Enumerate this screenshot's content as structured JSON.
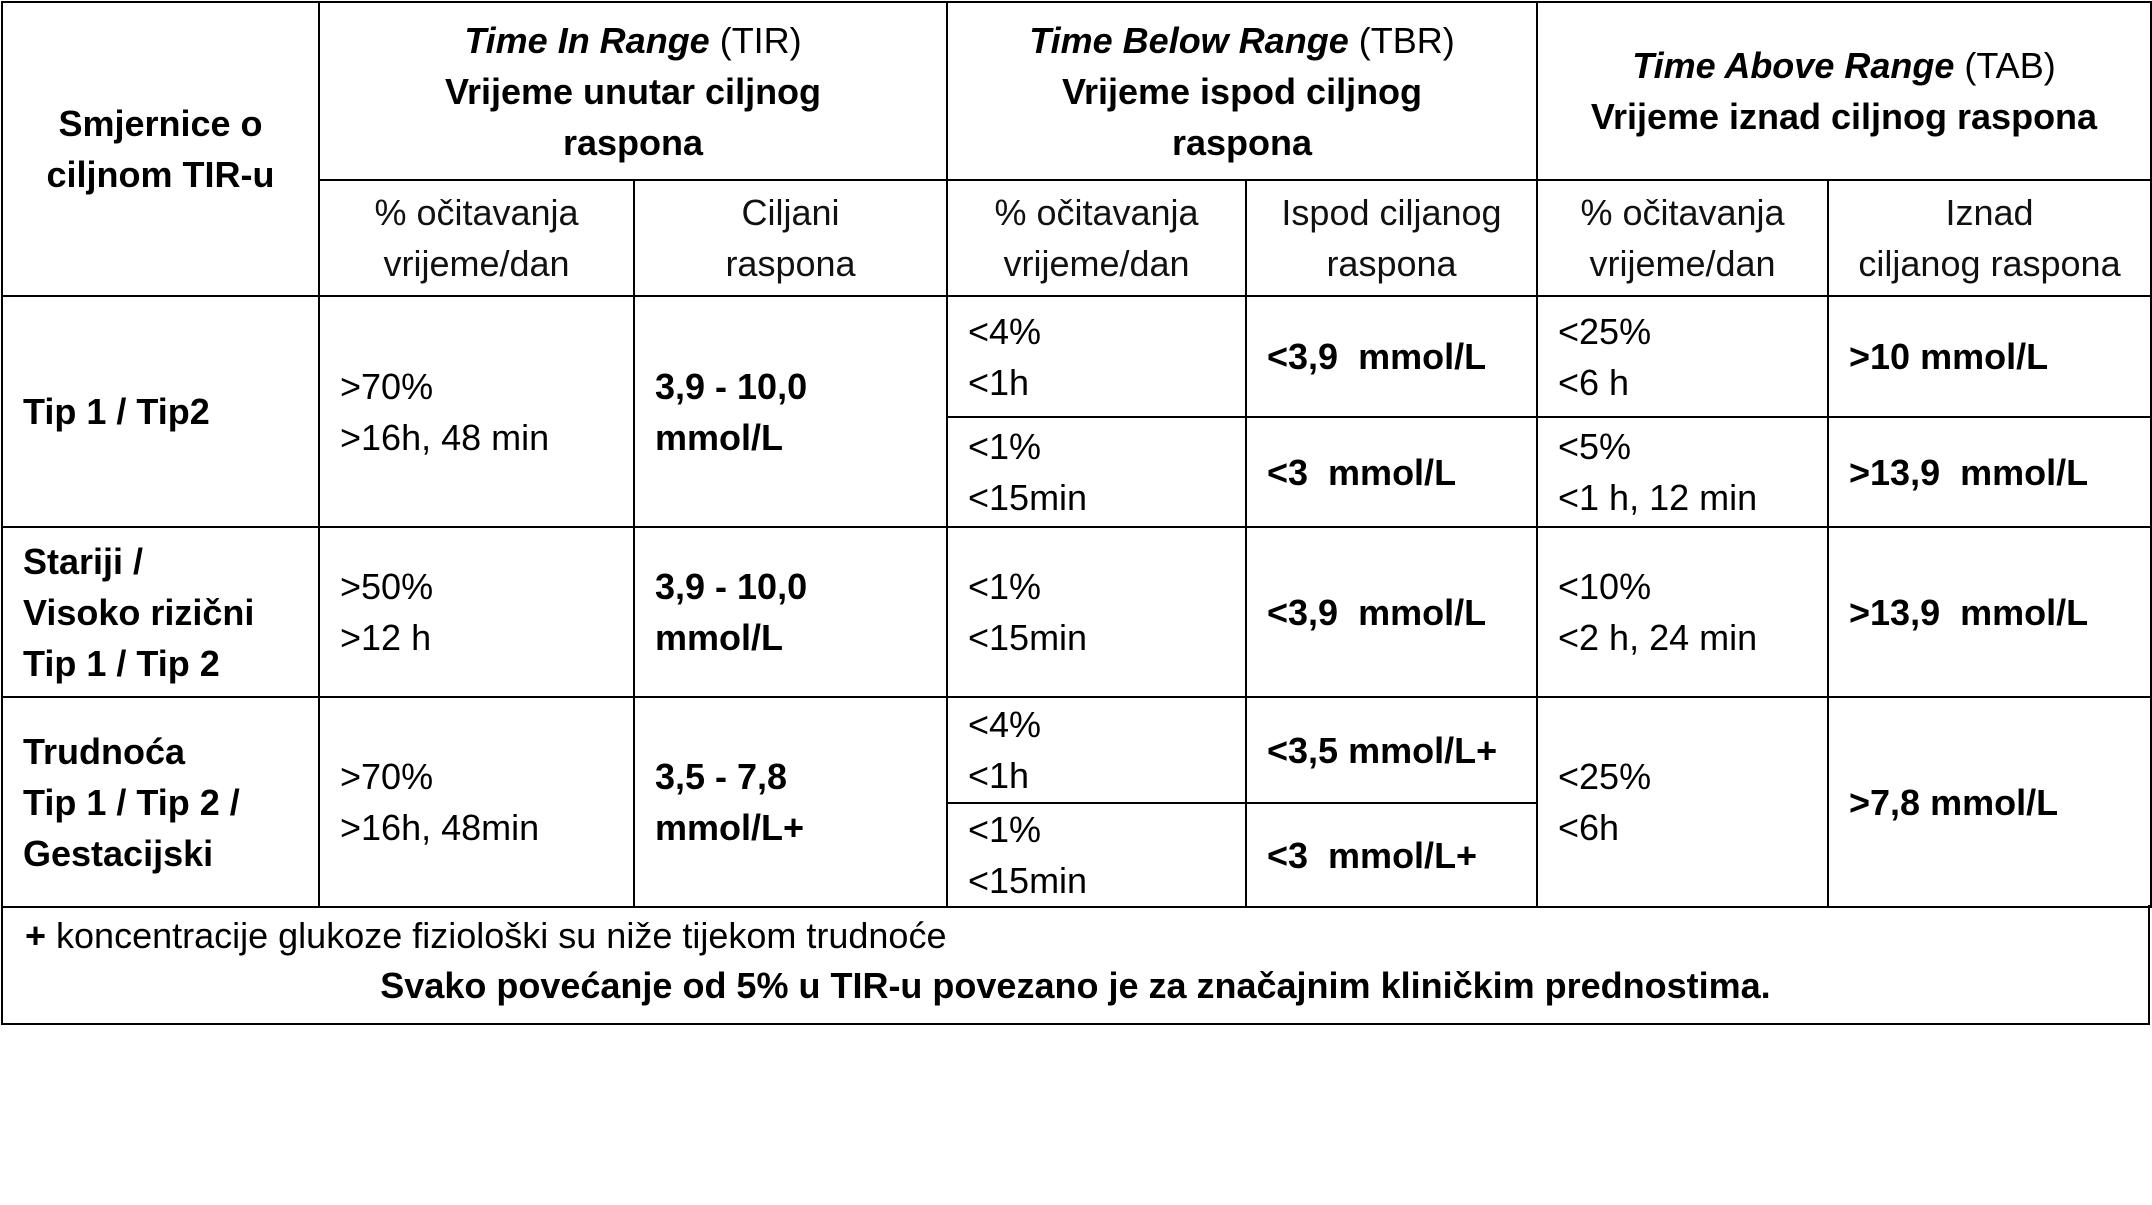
{
  "header": {
    "guidelines": [
      "Smjernice o",
      "ciljnom TIR-u"
    ],
    "tir": {
      "title_italic": "Time In Range",
      "abbr": " (TIR)",
      "subtitle": [
        "Vrijeme unutar ciljnog",
        "raspona"
      ]
    },
    "tbr": {
      "title_italic": "Time Below Range",
      "abbr": " (TBR)",
      "subtitle": [
        "Vrijeme ispod ciljnog",
        "raspona"
      ]
    },
    "tab": {
      "title_italic": "Time Above Range",
      "abbr": " (TAB)",
      "subtitle": [
        "Vrijeme iznad ciljnog raspona"
      ]
    },
    "sub": {
      "tir_pct": [
        "% očitavanja",
        "vrijeme/dan"
      ],
      "tir_range": [
        "Ciljani",
        "raspona"
      ],
      "tbr_pct": [
        "% očitavanja",
        "vrijeme/dan"
      ],
      "tbr_range": [
        "Ispod ciljanog",
        "raspona"
      ],
      "tab_pct": [
        "% očitavanja",
        "vrijeme/dan"
      ],
      "tab_range": [
        "Iznad",
        "ciljanog raspona"
      ]
    }
  },
  "rows": [
    {
      "label": [
        "Tip 1 / Tip2"
      ],
      "tir_pct": [
        ">70%",
        ">16h, 48 min"
      ],
      "tir_range": [
        "3,9 - 10,0",
        "mmol/L"
      ],
      "tbr": [
        {
          "pct": [
            "<4%",
            "<1h"
          ],
          "range": "<3,9  mmol/L"
        },
        {
          "pct": [
            "<1%",
            "<15min"
          ],
          "range": "<3  mmol/L"
        }
      ],
      "tab": [
        {
          "pct": [
            "<25%",
            "<6 h"
          ],
          "range": ">10 mmol/L"
        },
        {
          "pct": [
            "<5%",
            "<1 h, 12 min"
          ],
          "range": ">13,9  mmol/L"
        }
      ]
    },
    {
      "label": [
        "Stariji /",
        "Visoko rizični",
        "Tip 1 / Tip 2"
      ],
      "tir_pct": [
        ">50%",
        ">12 h"
      ],
      "tir_range": [
        "3,9 - 10,0",
        "mmol/L"
      ],
      "tbr": [
        {
          "pct": [
            "<1%",
            "<15min"
          ],
          "range": "<3,9  mmol/L"
        }
      ],
      "tab": [
        {
          "pct": [
            "<10%",
            "<2 h, 24 min"
          ],
          "range": ">13,9  mmol/L"
        }
      ]
    },
    {
      "label": [
        "Trudnoća",
        "Tip 1 / Tip 2 /",
        "Gestacijski"
      ],
      "tir_pct": [
        ">70%",
        ">16h, 48min"
      ],
      "tir_range": [
        "3,5 - 7,8",
        "mmol/L+"
      ],
      "tbr": [
        {
          "pct": [
            "<4%",
            "<1h"
          ],
          "range": "<3,5 mmol/L+"
        },
        {
          "pct": [
            "<1%",
            "<15min"
          ],
          "range": "<3  mmol/L+"
        }
      ],
      "tab": [
        {
          "pct": [
            "<25%",
            "<6h"
          ],
          "range": ">7,8 mmol/L"
        }
      ]
    }
  ],
  "footer": {
    "plus": "+",
    "note": " koncentracije glukoze fiziološki su niže tijekom trudnoće",
    "summary": "Svako povećanje od 5% u TIR-u povezano je za značajnim kliničkim prednostima."
  }
}
